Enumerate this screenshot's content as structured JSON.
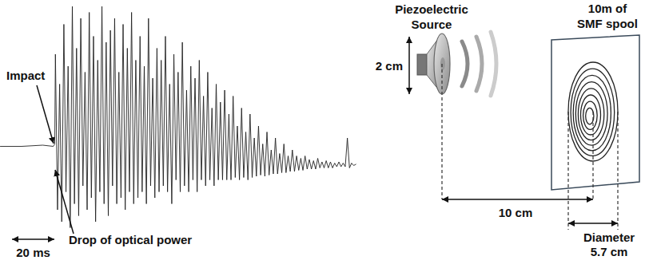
{
  "chart_data": {
    "type": "line",
    "x": [
      0,
      10,
      20,
      25,
      25.7,
      26,
      27,
      28,
      29,
      30,
      31,
      32,
      33,
      34,
      35,
      36,
      37,
      38,
      39,
      40,
      41,
      42,
      43,
      44,
      45,
      46,
      47,
      48,
      49,
      50,
      51,
      52,
      53,
      54,
      55,
      56,
      57,
      58,
      59,
      60,
      61,
      62,
      63,
      64,
      65,
      66,
      67,
      68,
      69,
      70,
      71,
      72,
      73,
      74,
      75,
      76,
      77,
      78,
      79,
      80,
      81,
      82,
      83,
      84,
      85,
      86,
      87,
      88,
      89,
      90,
      91,
      92,
      93,
      94,
      95,
      96,
      97,
      98,
      99,
      100,
      101,
      102,
      103,
      104,
      105,
      106,
      107,
      108,
      109,
      110,
      111,
      112,
      113,
      114,
      115,
      116,
      117,
      118,
      119,
      120,
      121,
      122,
      123,
      124,
      125,
      126,
      127,
      128,
      129,
      130,
      131,
      132,
      133,
      134,
      135,
      136,
      137,
      138,
      139,
      140,
      141,
      142,
      143,
      144,
      145,
      146,
      147,
      148,
      149,
      150,
      151,
      152,
      153,
      154,
      155,
      156,
      157,
      158,
      159,
      160,
      161,
      162,
      163,
      164,
      165,
      166,
      167,
      168
    ],
    "values": [
      -0.22,
      -0.22,
      -0.21,
      -0.22,
      -0.2,
      0.55,
      -0.75,
      0.3,
      -0.85,
      0.8,
      -0.6,
      0.45,
      -0.9,
      0.95,
      -0.7,
      0.6,
      -0.8,
      0.85,
      -0.55,
      0.4,
      -0.75,
      0.9,
      -0.65,
      0.7,
      -0.85,
      0.5,
      -0.6,
      0.95,
      -0.7,
      0.65,
      -0.8,
      0.75,
      -0.55,
      0.85,
      -0.7,
      0.4,
      -0.65,
      0.8,
      -0.75,
      0.6,
      -0.6,
      0.9,
      -0.7,
      0.5,
      -0.65,
      0.7,
      -0.6,
      0.45,
      -0.7,
      0.85,
      -0.55,
      0.35,
      -0.65,
      0.6,
      -0.6,
      0.5,
      -0.55,
      0.7,
      -0.6,
      0.3,
      -0.7,
      0.55,
      -0.5,
      0.4,
      -0.6,
      0.65,
      -0.55,
      0.25,
      -0.6,
      0.45,
      -0.5,
      0.35,
      -0.6,
      0.5,
      -0.5,
      0.2,
      -0.55,
      0.4,
      -0.5,
      0.1,
      -0.55,
      0.3,
      -0.5,
      0.15,
      -0.5,
      0.25,
      -0.5,
      0.05,
      -0.5,
      0.2,
      -0.48,
      -0.05,
      -0.5,
      0.1,
      -0.48,
      -0.1,
      -0.5,
      0.05,
      -0.48,
      -0.15,
      -0.47,
      -0.05,
      -0.46,
      -0.2,
      -0.47,
      -0.1,
      -0.46,
      -0.25,
      -0.45,
      -0.15,
      -0.45,
      -0.28,
      -0.44,
      -0.2,
      -0.44,
      -0.3,
      -0.43,
      -0.25,
      -0.43,
      -0.3,
      -0.42,
      -0.32,
      -0.42,
      -0.3,
      -0.41,
      -0.33,
      -0.41,
      -0.34,
      -0.41,
      -0.32,
      -0.4,
      -0.35,
      -0.4,
      -0.34,
      -0.4,
      -0.35,
      -0.4,
      -0.36,
      -0.39,
      -0.35,
      -0.39,
      -0.36,
      -0.39,
      -0.15,
      -0.4,
      -0.36,
      -0.38,
      -0.37
    ],
    "xlim": [
      0,
      170
    ],
    "ylim": [
      -1,
      1
    ],
    "tick_labels": false,
    "color": "#222222",
    "annotations": {
      "impact": {
        "label": "Impact",
        "x": 25.7
      },
      "drop": {
        "label": "Drop of optical power"
      },
      "scale_bar": {
        "value": 20,
        "label": "20 ms"
      }
    }
  },
  "diagram": {
    "source": {
      "label": [
        "Piezoelectric",
        "Source"
      ],
      "size": "2 cm"
    },
    "distance": "10 cm",
    "spool": {
      "label": [
        "10m of",
        "SMF spool"
      ],
      "diameter": [
        "Diameter",
        "5.7 cm"
      ]
    }
  }
}
